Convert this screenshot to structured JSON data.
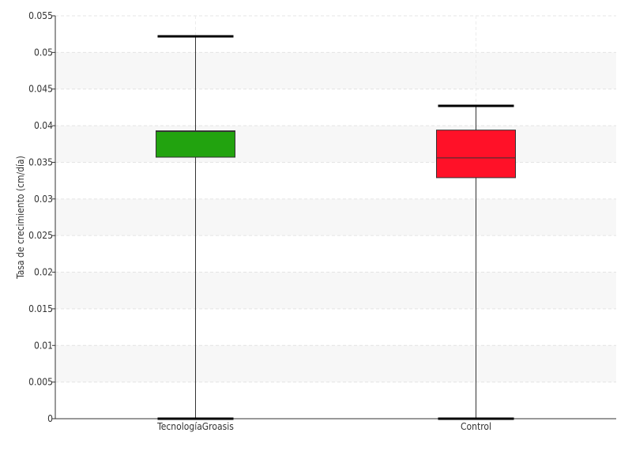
{
  "chart_data": {
    "type": "boxplot",
    "ylabel": "Tasa de crecimiento (cm/día)",
    "xlabel": "",
    "ylim": [
      0,
      0.055
    ],
    "yticks": [
      "0",
      "0.005",
      "0.01",
      "0.015",
      "0.02",
      "0.025",
      "0.03",
      "0.035",
      "0.04",
      "0.045",
      "0.05",
      "0.055"
    ],
    "grid": true,
    "categories": [
      "TecnologíaGroasis",
      "Control"
    ],
    "boxes": [
      {
        "category": "TecnologíaGroasis",
        "min": 0.0,
        "q1": 0.0357,
        "median": 0.0392,
        "q3": 0.0393,
        "max": 0.0522,
        "color": "#22a30f"
      },
      {
        "category": "Control",
        "min": 0.0,
        "q1": 0.0329,
        "median": 0.0356,
        "q3": 0.0394,
        "max": 0.0427,
        "color": "#ff1128"
      }
    ]
  }
}
